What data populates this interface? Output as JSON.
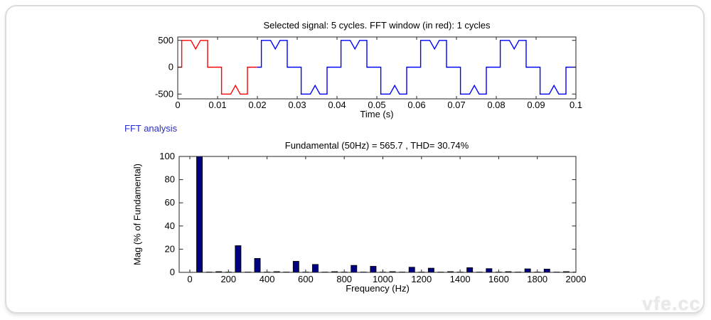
{
  "window": {
    "background_color": "#ffffff",
    "panel_border_color": "#dcdcdc"
  },
  "fft_section_label": {
    "text": "FFT analysis",
    "color": "#2b2bcc"
  },
  "watermark": {
    "text": "vfe.cc",
    "color": "#e9e9e9"
  },
  "chart_data": [
    {
      "type": "line",
      "title": "Selected signal: 5 cycles. FFT window (in red): 1 cycles",
      "xlabel": "Time (s)",
      "ylabel": "",
      "xlim": [
        0,
        0.1
      ],
      "ylim": [
        -600,
        600
      ],
      "grid": false,
      "xticks": {
        "values": [
          0,
          0.01,
          0.02,
          0.03,
          0.04,
          0.05,
          0.06,
          0.07,
          0.08,
          0.09,
          0.1
        ],
        "labels": [
          "0",
          "0.01",
          "0.02",
          "0.03",
          "0.04",
          "0.05",
          "0.06",
          "0.07",
          "0.08",
          "0.09",
          "0.1"
        ]
      },
      "yticks": {
        "values": [
          -500,
          0,
          500
        ],
        "labels": [
          "-500",
          "0",
          "500"
        ]
      },
      "signal": {
        "period_s": 0.02,
        "cycles": 5,
        "fft_window_cycles": 1,
        "amplitude": 500,
        "window_color": "#ff0000",
        "signal_color": "#0000ff",
        "cycle_points": [
          [
            0,
            0
          ],
          [
            0.001,
            0
          ],
          [
            0.001,
            500
          ],
          [
            0.0033,
            500
          ],
          [
            0.0045,
            340
          ],
          [
            0.0057,
            500
          ],
          [
            0.0075,
            500
          ],
          [
            0.0075,
            0
          ],
          [
            0.011,
            0
          ],
          [
            0.011,
            -500
          ],
          [
            0.0133,
            -500
          ],
          [
            0.0145,
            -340
          ],
          [
            0.0157,
            -500
          ],
          [
            0.0175,
            -500
          ],
          [
            0.0175,
            0
          ],
          [
            0.02,
            0
          ]
        ]
      }
    },
    {
      "type": "bar",
      "title": "Fundamental (50Hz) = 565.7 , THD= 30.74%",
      "fundamental_hz": 50,
      "fundamental_magnitude": 565.7,
      "thd_percent": 30.74,
      "xlabel": "Frequency (Hz)",
      "ylabel": "Mag (% of Fundamental)",
      "xlim": [
        -55,
        2000
      ],
      "ylim": [
        0,
        100
      ],
      "grid": false,
      "bar_color": "#000084",
      "bar_edge_color": "#000000",
      "xticks": {
        "values": [
          0,
          200,
          400,
          600,
          800,
          1000,
          1200,
          1400,
          1600,
          1800,
          2000
        ],
        "labels": [
          "0",
          "200",
          "400",
          "600",
          "800",
          "1000",
          "1200",
          "1400",
          "1600",
          "1800",
          "2000"
        ]
      },
      "yticks": {
        "values": [
          0,
          20,
          40,
          60,
          80,
          100
        ],
        "labels": [
          "0",
          "20",
          "40",
          "60",
          "80",
          "100"
        ]
      },
      "bars": {
        "freq_hz": [
          50,
          100,
          150,
          200,
          250,
          300,
          350,
          400,
          450,
          500,
          550,
          600,
          650,
          700,
          750,
          800,
          850,
          900,
          950,
          1000,
          1050,
          1100,
          1150,
          1200,
          1250,
          1300,
          1350,
          1400,
          1450,
          1500,
          1550,
          1600,
          1650,
          1700,
          1750,
          1800,
          1850,
          1900,
          1950,
          2000
        ],
        "mag_percent": [
          100,
          0.25,
          0.6,
          0.25,
          23,
          0.25,
          12,
          0.25,
          0.6,
          0.25,
          9.5,
          0.25,
          6.8,
          0.25,
          0.6,
          0.25,
          6.0,
          0.25,
          5.2,
          0.25,
          0.6,
          0.25,
          4.4,
          0.25,
          3.6,
          0.25,
          0.6,
          0.25,
          4.0,
          0.25,
          3.2,
          0.25,
          0.6,
          0.25,
          3.0,
          0.25,
          2.8,
          0.25,
          0.6,
          0.25
        ]
      }
    }
  ]
}
